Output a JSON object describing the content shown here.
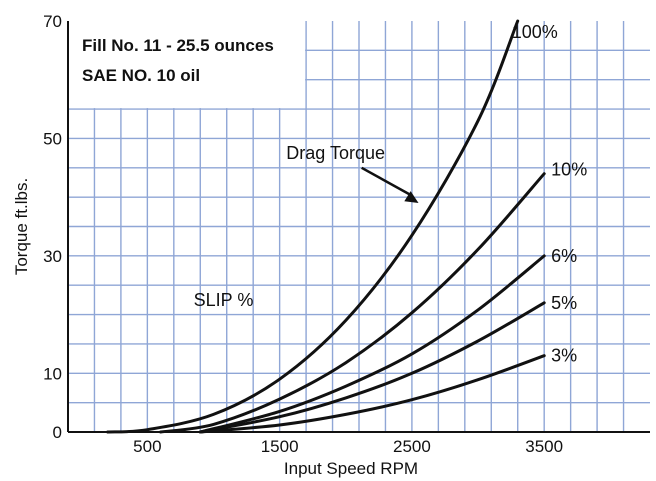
{
  "chart_data": {
    "type": "line",
    "title": "",
    "xlabel": "Input Speed RPM",
    "ylabel": "Torque  ft.lbs.",
    "xlim": [
      -100,
      4300
    ],
    "ylim": [
      0,
      70
    ],
    "x_ticks": [
      500,
      1500,
      2500,
      3500
    ],
    "x_tick_labels": [
      "500",
      "1500",
      "2500",
      "3500"
    ],
    "y_ticks": [
      0,
      10,
      30,
      50,
      70
    ],
    "y_tick_labels": [
      "0",
      "10",
      "30",
      "50",
      "70"
    ],
    "grid": true,
    "info_box": [
      "Fill No. 11 - 25.5 ounces",
      "SAE NO. 10 oil"
    ],
    "annotations": [
      {
        "text": "Drag Torque",
        "arrow_to": [
          2550,
          39
        ]
      },
      {
        "text": "SLIP %",
        "at": [
          1000,
          22
        ]
      }
    ],
    "series": [
      {
        "name": "100%",
        "x": [
          200,
          500,
          1000,
          1500,
          2000,
          2500,
          3000,
          3300
        ],
        "y": [
          0,
          0.4,
          3.0,
          9.0,
          19.0,
          33.5,
          53.0,
          70.0
        ]
      },
      {
        "name": "10%",
        "x": [
          600,
          1000,
          1500,
          2000,
          2500,
          3000,
          3500
        ],
        "y": [
          0,
          1.3,
          5.6,
          11.8,
          20.3,
          31.1,
          44.0
        ]
      },
      {
        "name": "6%",
        "x": [
          900,
          1500,
          2000,
          2500,
          3000,
          3500
        ],
        "y": [
          0,
          3.5,
          7.8,
          13.3,
          20.8,
          30.0
        ]
      },
      {
        "name": "5%",
        "x": [
          900,
          1500,
          2000,
          2500,
          3000,
          3500
        ],
        "y": [
          0,
          2.6,
          5.8,
          10.0,
          15.5,
          22.0
        ]
      },
      {
        "name": "3%",
        "x": [
          900,
          1500,
          2000,
          2500,
          3000,
          3500
        ],
        "y": [
          0,
          1.2,
          3.0,
          5.5,
          8.9,
          13.0
        ]
      }
    ]
  }
}
